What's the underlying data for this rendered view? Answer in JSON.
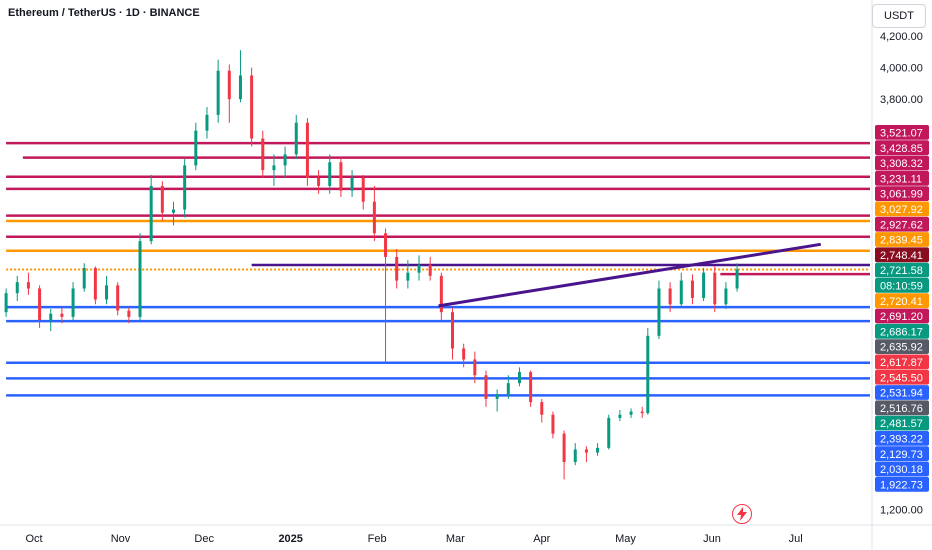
{
  "header": {
    "title": "Ethereum / TetherUS · 1D · BINANCE",
    "currency": "USDT"
  },
  "colors": {
    "bull": "#089981",
    "bear": "#f23645",
    "resistance": "#c2185b",
    "orange": "#ff9800",
    "support": "#2962ff",
    "trendline": "#4a148c"
  },
  "chart_data": {
    "type": "candlestick",
    "symbol": "ETH/USDT",
    "interval": "1D",
    "exchange": "BINANCE",
    "ylim": [
      1150,
      4300
    ],
    "x_ticks": [
      {
        "label": "Oct",
        "date": "2024-10-01"
      },
      {
        "label": "Nov",
        "date": "2024-11-01"
      },
      {
        "label": "Dec",
        "date": "2024-12-01"
      },
      {
        "label": "2025",
        "date": "2025-01-01",
        "bold": true
      },
      {
        "label": "Feb",
        "date": "2025-02-01"
      },
      {
        "label": "Mar",
        "date": "2025-03-01"
      },
      {
        "label": "Apr",
        "date": "2025-04-01"
      },
      {
        "label": "May",
        "date": "2025-05-01"
      },
      {
        "label": "Jun",
        "date": "2025-06-01"
      },
      {
        "label": "Jul",
        "date": "2025-07-01"
      }
    ],
    "y_ticks": [
      4200,
      4000,
      3800,
      1200
    ],
    "y_tick_labels": [
      "4,200.00",
      "4,000.00",
      "3,800.00",
      "1,200.00"
    ],
    "price_labels": [
      {
        "text": "3,521.07",
        "value": 3521.07,
        "color": "#c2185b"
      },
      {
        "text": "3,428.85",
        "value": 3428.85,
        "color": "#c2185b"
      },
      {
        "text": "3,308.32",
        "value": 3308.32,
        "color": "#c2185b"
      },
      {
        "text": "3,231.11",
        "value": 3231.11,
        "color": "#c2185b"
      },
      {
        "text": "3,061.99",
        "value": 3061.99,
        "color": "#c2185b"
      },
      {
        "text": "3,027.92",
        "value": 3027.92,
        "color": "#ff9800"
      },
      {
        "text": "2,927.62",
        "value": 2927.62,
        "color": "#c2185b"
      },
      {
        "text": "2,839.45",
        "value": 2839.45,
        "color": "#ff9800"
      },
      {
        "text": "2,748.41",
        "value": 2748.41,
        "color": "#880e1f"
      },
      {
        "text": "2,721.58",
        "value": 2721.58,
        "color": "#089981"
      },
      {
        "text": "08:10:59",
        "value": 2680,
        "color": "#089981"
      },
      {
        "text": "2,720.41",
        "value": 2720.41,
        "color": "#ff9800"
      },
      {
        "text": "2,691.20",
        "value": 2691.2,
        "color": "#c2185b"
      },
      {
        "text": "2,686.17",
        "value": 2686.17,
        "color": "#089981"
      },
      {
        "text": "2,635.92",
        "value": 2635.92,
        "color": "#555a66"
      },
      {
        "text": "2,617.87",
        "value": 2617.87,
        "color": "#f23645"
      },
      {
        "text": "2,545.50",
        "value": 2545.5,
        "color": "#f23645"
      },
      {
        "text": "2,531.94",
        "value": 2531.94,
        "color": "#2962ff"
      },
      {
        "text": "2,516.76",
        "value": 2516.76,
        "color": "#555a66"
      },
      {
        "text": "2,481.57",
        "value": 2481.57,
        "color": "#089981"
      },
      {
        "text": "2,393.22",
        "value": 2393.22,
        "color": "#2962ff"
      },
      {
        "text": "2,129.73",
        "value": 2129.73,
        "color": "#2962ff"
      },
      {
        "text": "2,030.18",
        "value": 2030.18,
        "color": "#2962ff"
      },
      {
        "text": "1,922.73",
        "value": 1922.73,
        "color": "#2962ff"
      }
    ],
    "horizontal_lines": [
      {
        "value": 3521.07,
        "color": "#c2185b",
        "start": "2024-09-21"
      },
      {
        "value": 3428.85,
        "color": "#c2185b",
        "start": "2024-09-27"
      },
      {
        "value": 3308.32,
        "color": "#c2185b",
        "start": "2024-09-21"
      },
      {
        "value": 3231.11,
        "color": "#c2185b",
        "start": "2024-09-21"
      },
      {
        "value": 3061.99,
        "color": "#c2185b",
        "start": "2024-09-21"
      },
      {
        "value": 3027.92,
        "color": "#ff9800",
        "start": "2024-09-21"
      },
      {
        "value": 2927.62,
        "color": "#c2185b",
        "start": "2024-09-21"
      },
      {
        "value": 2839.45,
        "color": "#ff9800",
        "start": "2024-09-21"
      },
      {
        "value": 2748.41,
        "color": "#4a148c",
        "start": "2024-12-18"
      },
      {
        "value": 2720.41,
        "color": "#ff9800",
        "start": "2024-09-21",
        "dotted": true
      },
      {
        "value": 2691.2,
        "color": "#c2185b",
        "start": "2025-06-04"
      },
      {
        "value": 2481.57,
        "color": "#2962ff",
        "start": "2024-09-21"
      },
      {
        "value": 2393.22,
        "color": "#2962ff",
        "start": "2024-09-21"
      },
      {
        "value": 2129.73,
        "color": "#2962ff",
        "start": "2024-09-21"
      },
      {
        "value": 2030.18,
        "color": "#2962ff",
        "start": "2024-09-21"
      },
      {
        "value": 1922.73,
        "color": "#2962ff",
        "start": "2024-09-21"
      }
    ],
    "trendline": {
      "start": {
        "date": "2025-02-23",
        "value": 2490
      },
      "end": {
        "date": "2025-07-10",
        "value": 2880
      },
      "color": "#4a148c"
    },
    "candles": [
      [
        "2024-09-21",
        2450,
        2600,
        2420,
        2570
      ],
      [
        "2024-09-25",
        2570,
        2680,
        2520,
        2640
      ],
      [
        "2024-09-29",
        2640,
        2700,
        2560,
        2600
      ],
      [
        "2024-10-03",
        2600,
        2620,
        2350,
        2400
      ],
      [
        "2024-10-07",
        2400,
        2470,
        2330,
        2440
      ],
      [
        "2024-10-11",
        2440,
        2480,
        2380,
        2420
      ],
      [
        "2024-10-15",
        2420,
        2640,
        2400,
        2600
      ],
      [
        "2024-10-19",
        2600,
        2760,
        2580,
        2730
      ],
      [
        "2024-10-23",
        2730,
        2740,
        2500,
        2530
      ],
      [
        "2024-10-27",
        2530,
        2680,
        2500,
        2620
      ],
      [
        "2024-10-31",
        2620,
        2640,
        2430,
        2460
      ],
      [
        "2024-11-04",
        2460,
        2480,
        2380,
        2420
      ],
      [
        "2024-11-08",
        2420,
        2950,
        2400,
        2900
      ],
      [
        "2024-11-12",
        2900,
        3320,
        2880,
        3250
      ],
      [
        "2024-11-16",
        3250,
        3280,
        3030,
        3080
      ],
      [
        "2024-11-20",
        3080,
        3150,
        3000,
        3100
      ],
      [
        "2024-11-24",
        3100,
        3420,
        3050,
        3380
      ],
      [
        "2024-11-28",
        3380,
        3650,
        3350,
        3600
      ],
      [
        "2024-12-02",
        3600,
        3750,
        3550,
        3700
      ],
      [
        "2024-12-06",
        3700,
        4050,
        3650,
        3980
      ],
      [
        "2024-12-10",
        3980,
        4020,
        3650,
        3800
      ],
      [
        "2024-12-14",
        3800,
        4110,
        3780,
        3950
      ],
      [
        "2024-12-18",
        3950,
        4000,
        3500,
        3550
      ],
      [
        "2024-12-22",
        3550,
        3600,
        3300,
        3350
      ],
      [
        "2024-12-26",
        3350,
        3450,
        3250,
        3380
      ],
      [
        "2024-12-30",
        3380,
        3500,
        3300,
        3450
      ],
      [
        "2025-01-03",
        3450,
        3700,
        3420,
        3650
      ],
      [
        "2025-01-07",
        3650,
        3680,
        3250,
        3300
      ],
      [
        "2025-01-11",
        3300,
        3350,
        3200,
        3250
      ],
      [
        "2025-01-15",
        3250,
        3450,
        3200,
        3400
      ],
      [
        "2025-01-19",
        3400,
        3430,
        3180,
        3220
      ],
      [
        "2025-01-23",
        3220,
        3350,
        3180,
        3300
      ],
      [
        "2025-01-27",
        3300,
        3320,
        3100,
        3150
      ],
      [
        "2025-01-31",
        3150,
        3250,
        2900,
        2950
      ],
      [
        "2025-02-04",
        2950,
        2980,
        2130,
        2800
      ],
      [
        "2025-02-08",
        2800,
        2850,
        2600,
        2650
      ],
      [
        "2025-02-12",
        2650,
        2780,
        2600,
        2700
      ],
      [
        "2025-02-16",
        2700,
        2810,
        2650,
        2750
      ],
      [
        "2025-02-20",
        2750,
        2800,
        2650,
        2680
      ],
      [
        "2025-02-24",
        2680,
        2700,
        2400,
        2450
      ],
      [
        "2025-02-28",
        2450,
        2480,
        2150,
        2220
      ],
      [
        "2025-03-04",
        2220,
        2250,
        2100,
        2150
      ],
      [
        "2025-03-08",
        2150,
        2200,
        2000,
        2050
      ],
      [
        "2025-03-12",
        2050,
        2080,
        1850,
        1900
      ],
      [
        "2025-03-16",
        1900,
        1960,
        1820,
        1930
      ],
      [
        "2025-03-20",
        1930,
        2050,
        1900,
        2000
      ],
      [
        "2025-03-24",
        2000,
        2100,
        1980,
        2070
      ],
      [
        "2025-03-28",
        2070,
        2080,
        1850,
        1880
      ],
      [
        "2025-04-01",
        1880,
        1900,
        1750,
        1800
      ],
      [
        "2025-04-05",
        1800,
        1820,
        1650,
        1680
      ],
      [
        "2025-04-09",
        1680,
        1700,
        1390,
        1500
      ],
      [
        "2025-04-13",
        1500,
        1620,
        1480,
        1580
      ],
      [
        "2025-04-17",
        1580,
        1600,
        1500,
        1560
      ],
      [
        "2025-04-21",
        1560,
        1620,
        1540,
        1590
      ],
      [
        "2025-04-25",
        1590,
        1800,
        1580,
        1780
      ],
      [
        "2025-04-29",
        1780,
        1830,
        1760,
        1800
      ],
      [
        "2025-05-03",
        1800,
        1840,
        1780,
        1820
      ],
      [
        "2025-05-07",
        1820,
        1850,
        1780,
        1810
      ],
      [
        "2025-05-09",
        1810,
        2350,
        1800,
        2300
      ],
      [
        "2025-05-13",
        2300,
        2650,
        2280,
        2600
      ],
      [
        "2025-05-17",
        2600,
        2640,
        2450,
        2500
      ],
      [
        "2025-05-21",
        2500,
        2700,
        2480,
        2650
      ],
      [
        "2025-05-25",
        2650,
        2690,
        2500,
        2540
      ],
      [
        "2025-05-29",
        2540,
        2730,
        2520,
        2700
      ],
      [
        "2025-06-02",
        2700,
        2740,
        2450,
        2500
      ],
      [
        "2025-06-06",
        2500,
        2640,
        2470,
        2600
      ],
      [
        "2025-06-10",
        2600,
        2760,
        2580,
        2721.58
      ]
    ]
  }
}
